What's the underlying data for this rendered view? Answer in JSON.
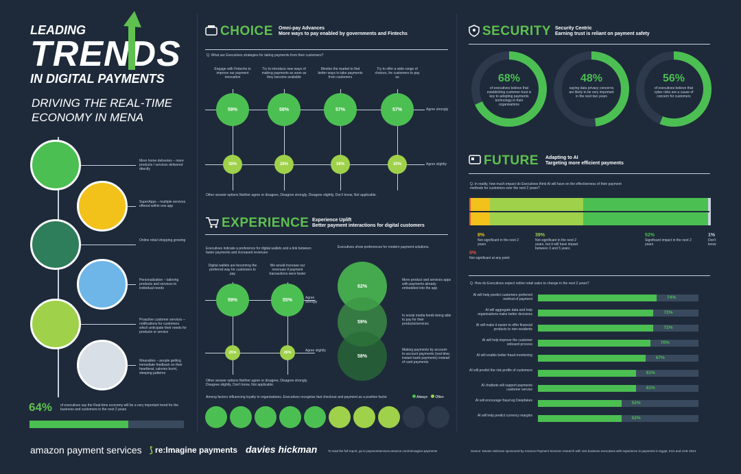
{
  "left": {
    "title_line1": "LEADING",
    "title_line2": "TRENDS",
    "title_line3": "IN DIGITAL PAYMENTS",
    "subtitle_line1": "DRIVING THE REAL-TIME",
    "subtitle_line2": "ECONOMY IN MENA",
    "items": [
      {
        "text": "More home deliveries – more products / services delivered directly"
      },
      {
        "text": "SuperApps – multiple services offered within one app"
      },
      {
        "text": "Online retail shopping growing"
      },
      {
        "text": "Personalization – tailoring products and services to individual needs"
      },
      {
        "text": "Proactive customer services – notifications for customers which anticipate their needs for products or service"
      },
      {
        "text": "Wearables – people getting immediate feedback on their heartbeat, calories burnt, sleeping patterns"
      }
    ],
    "stat_value": "64%",
    "stat_text": "of executives say the Real-time economy will be a very important trend for the business and customers in the next 2 years",
    "stat_fraction": 0.64
  },
  "choice": {
    "title": "CHOICE",
    "subtitle1": "Omni-pay Advances",
    "subtitle2": "More ways to pay enabled by governments and Fintechs",
    "question": "Q. What are Executives strategies for taking payments from their customers?",
    "columns": [
      {
        "label": "Engage with Fintechs to improve our payment innovation",
        "strong": "59%",
        "slight": "30%"
      },
      {
        "label": "Try to introduce new ways of making payments as soon as they become available",
        "strong": "58%",
        "slight": "28%"
      },
      {
        "label": "Monitor the market to find better ways to take payments from customers",
        "strong": "57%",
        "slight": "36%"
      },
      {
        "label": "Try to offer a wide range of choices, for customers to pay us",
        "strong": "57%",
        "slight": "30%"
      }
    ],
    "agree_strongly": "Agree strongly",
    "agree_slightly": "Agree slightly",
    "note": "Other answer options Neither agree or disagree, Disagree strongly, Disagree slightly, Don't know, Not applicable."
  },
  "experience": {
    "title": "EXPERIENCE",
    "subtitle1": "Experience Uplift",
    "subtitle2": "Better payment interactions for digital customers",
    "left_q": "Executives indicate a preference for digital wallets and a link between faster payments and increased revenues",
    "right_q": "Executives show preferences for modern payment solutions.",
    "cols": [
      {
        "label": "Digital wallets are becoming the preferred way for customers to pay",
        "strong": "59%",
        "slight": "25%"
      },
      {
        "label": "We would increase our revenues if payment transactions were faster",
        "strong": "55%",
        "slight": "26%"
      }
    ],
    "agree_strongly": "Agree strongly",
    "agree_slightly": "Agree slightly",
    "note": "Other answer options Neither agree or disagree, Disagree strongly, Disagree slightly, Don't know, Not applicable.",
    "venn": [
      {
        "value": "62%",
        "text": "More product and services apps with payments already embedded into the app"
      },
      {
        "value": "59%",
        "text": "In social media feeds being able to pay for their products/services"
      },
      {
        "value": "58%",
        "text": "Making payments by account-to-account payments (real-time, instant bank payments) instead of card payments"
      }
    ],
    "loyalty_text": "Among factors influencing loyalty to organisations, Executives recognise fast checkout and payment as a positive factor",
    "always": "Always",
    "often": "Often",
    "loyalty_dots": [
      "always",
      "always",
      "always",
      "always",
      "always",
      "often",
      "often",
      "often",
      "none",
      "none"
    ]
  },
  "security": {
    "title": "SECURITY",
    "subtitle1": "Security Centric",
    "subtitle2": "Earning trust is reliant on payment safety",
    "rings": [
      {
        "value": "68%",
        "text": "of executives believe that establishing customer trust is key to adopting payments technology in their organisations",
        "fraction": 0.68
      },
      {
        "value": "48%",
        "text": "saying data privacy concerns are likely to be very important in the next two years",
        "fraction": 0.48
      },
      {
        "value": "56%",
        "text": "of executives believe that cyber risks are a cause of concern for customers",
        "fraction": 0.56
      }
    ]
  },
  "future": {
    "title": "FUTURE",
    "subtitle1": "Adapting to AI",
    "subtitle2": "Targeting more efficient payments",
    "question": "Q. In reality, how much impact do Executives think AI will have on the effectiveness of their payment methods for customers over the next 2 years?",
    "segments": [
      {
        "value": "0%",
        "label": "Not significant at any point",
        "fraction": 0.005,
        "color": "#e8533a"
      },
      {
        "value": "8%",
        "label": "Not significant in the next 2 years",
        "fraction": 0.08,
        "color": "#f2c21b"
      },
      {
        "value": "39%",
        "label": "Not significant in the next 2 years, but it will have impact between 3 and 5 years",
        "fraction": 0.39,
        "color": "#9fd14a"
      },
      {
        "value": "52%",
        "label": "Significant impact in the next 2 years",
        "fraction": 0.52,
        "color": "#4cbf52"
      },
      {
        "value": "1%",
        "label": "Don't know",
        "fraction": 0.01,
        "color": "#c9d3de"
      }
    ],
    "question2": "Q. How do Executives expect online retail sales to change in the next 2 years?",
    "bars": [
      {
        "label": "AI will help predict customers preferred method of payment",
        "value": "74%",
        "fraction": 0.74
      },
      {
        "label": "AI will aggregate data and help organisations make better decisions",
        "value": "72%",
        "fraction": 0.72
      },
      {
        "label": "AI will make it easier to offer financial products to non-residents",
        "value": "72%",
        "fraction": 0.72
      },
      {
        "label": "AI will help improve the customer onboard process",
        "value": "70%",
        "fraction": 0.7
      },
      {
        "label": "AI will enable better fraud-monitoring",
        "value": "67%",
        "fraction": 0.67
      },
      {
        "label": "AI will predict the risk profile of customers",
        "value": "61%",
        "fraction": 0.61
      },
      {
        "label": "AI chatbots will support payments customer service",
        "value": "61%",
        "fraction": 0.61
      },
      {
        "label": "AI will encourage fraud eg Deepfakes",
        "value": "52%",
        "fraction": 0.52
      },
      {
        "label": "AI will help predict currency margins",
        "value": "52%",
        "fraction": 0.52
      }
    ]
  },
  "footer": {
    "logo1": "amazon payment services",
    "logo2": "re:Imagine payments",
    "logo3": "davies hickman",
    "read_more": "To read the full report, go to paymentservices.amazon.com/reimagine-payments",
    "source": "Source: Davies Hickman sponsored by Amazon Payment Services research with 104 business executives with experience in payments in Egypt, KSA and UAE 2024."
  }
}
